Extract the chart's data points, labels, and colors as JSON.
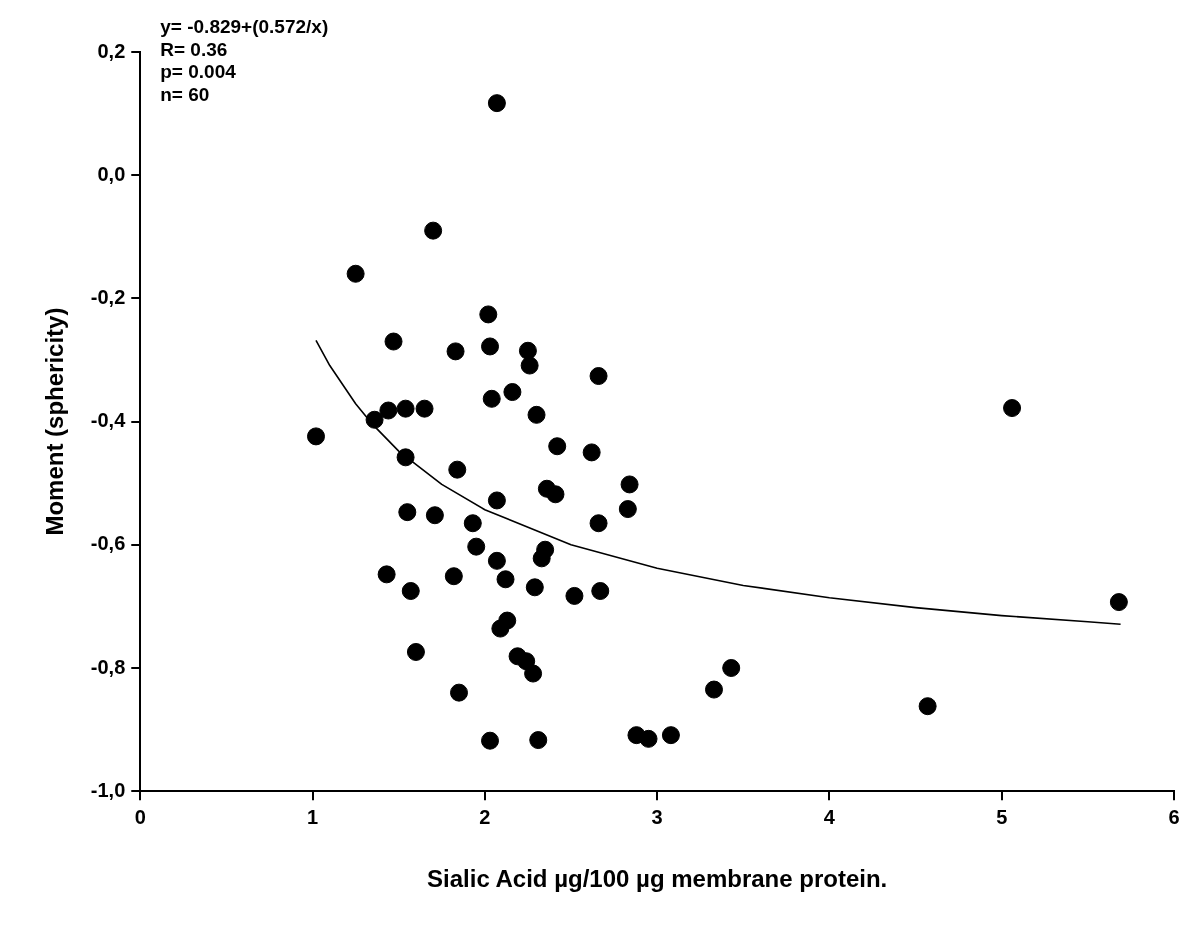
{
  "chart_data": {
    "type": "scatter",
    "xlabel": "Sialic Acid µg/100 µg membrane protein.",
    "ylabel": "Moment (sphericity)",
    "annotations": [
      "y= -0.829+(0.572/x)",
      "R= 0.36",
      "p= 0.004",
      "n= 60"
    ],
    "xlim": [
      0,
      6
    ],
    "xticks": [
      0,
      1,
      2,
      3,
      4,
      5,
      6
    ],
    "ylim": [
      -1.0,
      0.2
    ],
    "yticks": [
      {
        "value": -1.0,
        "label": "-1,0"
      },
      {
        "value": -0.8,
        "label": "-0,8"
      },
      {
        "value": -0.6,
        "label": "-0,6"
      },
      {
        "value": -0.4,
        "label": "-0,4"
      },
      {
        "value": -0.2,
        "label": "-0,2"
      },
      {
        "value": 0.0,
        "label": "0,0"
      },
      {
        "value": 0.2,
        "label": "0,2"
      }
    ],
    "grid": false,
    "legend": false,
    "marker": "circle",
    "series": [
      {
        "type": "scatter",
        "color": "#000000",
        "x": [
          2.07,
          1.7,
          1.25,
          2.02,
          1.47,
          1.83,
          2.03,
          2.25,
          2.26,
          2.66,
          2.04,
          2.16,
          2.3,
          1.36,
          1.44,
          1.54,
          1.65,
          1.02,
          2.42,
          2.62,
          1.54,
          1.84,
          2.84,
          2.36,
          2.41,
          2.83,
          2.07,
          1.55,
          1.71,
          1.93,
          2.66,
          1.95,
          2.07,
          2.35,
          2.33,
          1.43,
          1.82,
          2.12,
          1.57,
          2.29,
          2.52,
          2.67,
          2.13,
          2.09,
          1.6,
          2.19,
          2.24,
          2.28,
          1.85,
          2.03,
          2.31,
          2.88,
          2.95,
          3.08,
          3.43,
          3.33,
          4.57,
          5.06,
          5.68
        ],
        "values": [
          0.117,
          -0.09,
          -0.16,
          -0.226,
          -0.27,
          -0.286,
          -0.278,
          -0.285,
          -0.309,
          -0.326,
          -0.363,
          -0.352,
          -0.389,
          -0.397,
          -0.382,
          -0.379,
          -0.379,
          -0.424,
          -0.44,
          -0.45,
          -0.458,
          -0.478,
          -0.502,
          -0.509,
          -0.518,
          -0.542,
          -0.528,
          -0.547,
          -0.552,
          -0.565,
          -0.565,
          -0.603,
          -0.626,
          -0.608,
          -0.622,
          -0.648,
          -0.651,
          -0.656,
          -0.675,
          -0.669,
          -0.683,
          -0.675,
          -0.723,
          -0.736,
          -0.774,
          -0.781,
          -0.789,
          -0.809,
          -0.84,
          -0.918,
          -0.917,
          -0.909,
          -0.915,
          -0.909,
          -0.8,
          -0.835,
          -0.862,
          -0.378,
          -0.693
        ]
      },
      {
        "type": "line",
        "color": "#000000",
        "line_style": "solid",
        "marker": "none",
        "x": [
          1.02,
          1.1,
          1.25,
          1.35,
          1.5,
          1.75,
          2,
          2.5,
          3,
          3.5,
          4,
          4.5,
          5,
          5.5,
          5.69
        ],
        "values": [
          -0.268,
          -0.309,
          -0.371,
          -0.405,
          -0.448,
          -0.502,
          -0.543,
          -0.6,
          -0.638,
          -0.666,
          -0.686,
          -0.702,
          -0.715,
          -0.725,
          -0.729
        ]
      }
    ]
  }
}
